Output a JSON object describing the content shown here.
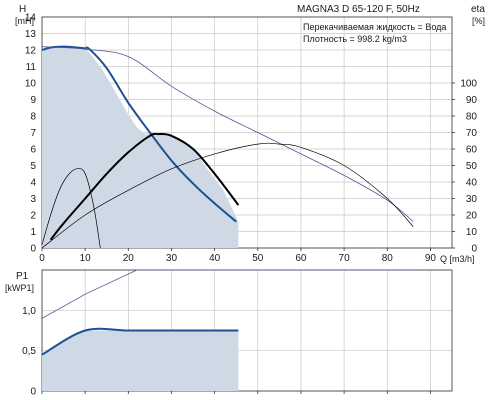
{
  "chart_data": [
    {
      "type": "line",
      "title": "MAGNA3 D 65-120 F, 50Hz",
      "info": [
        "Перекачиваемая жидкость = Вода",
        "Плотность = 998.2 kg/m3"
      ],
      "ylabel": "H",
      "yunit": "[mH]",
      "y2label": "eta",
      "y2unit": "[%]",
      "xlabel": "Q [m3/h]",
      "xlim": [
        0,
        95
      ],
      "ylim": [
        0,
        14
      ],
      "y2lim": [
        0,
        140
      ],
      "x_ticks": [
        "0",
        "10",
        "20",
        "30",
        "40",
        "50",
        "60",
        "70",
        "80",
        "90"
      ],
      "y_ticks": [
        "0",
        "1",
        "2",
        "3",
        "4",
        "5",
        "6",
        "7",
        "8",
        "9",
        "10",
        "11",
        "12",
        "13",
        "14"
      ],
      "y2_ticks": [
        "0",
        "10",
        "20",
        "30",
        "40",
        "50",
        "60",
        "70",
        "80",
        "90",
        "100"
      ],
      "grid": true,
      "colors": {
        "grid": "#c8c8c8",
        "fill": "#cfd9e6",
        "curve": "#1e4f94",
        "eta": "#000000",
        "thin": "#4a5a96"
      },
      "series": [
        {
          "role": "operating-area",
          "axis": "H",
          "x": [
            0,
            0,
            1,
            2,
            4,
            6,
            8,
            10,
            12,
            14,
            16,
            18,
            20,
            22,
            24,
            25,
            30,
            35,
            38,
            40,
            42,
            45.5
          ],
          "y": [
            0,
            12,
            12.1,
            12.15,
            12.2,
            12.2,
            12.15,
            12.1,
            11.5,
            10.8,
            9.9,
            9.0,
            8.1,
            7.3,
            6.9,
            7.0,
            6.8,
            6.0,
            4.9,
            4.2,
            3.5,
            1.6
          ]
        },
        {
          "role": "max-curve",
          "axis": "H",
          "x": [
            0,
            2,
            4,
            6,
            8,
            10,
            11,
            15,
            20,
            25,
            30,
            35,
            40,
            45
          ],
          "y": [
            12,
            12.15,
            12.2,
            12.2,
            12.15,
            12.1,
            12.05,
            10.9,
            8.8,
            7.0,
            5.3,
            3.9,
            2.7,
            1.6
          ]
        },
        {
          "role": "max-speed-thin",
          "axis": "H",
          "x": [
            0,
            10,
            20,
            30,
            40,
            50,
            60,
            70,
            80,
            86
          ],
          "y": [
            12.2,
            12.05,
            11.6,
            9.8,
            8.3,
            7.0,
            5.7,
            4.4,
            2.9,
            1.6
          ]
        },
        {
          "role": "eta-max",
          "axis": "eta",
          "x": [
            2,
            5,
            10,
            15,
            20,
            25,
            27,
            30,
            35,
            40,
            45.5
          ],
          "y": [
            5,
            15,
            30,
            45,
            58,
            68,
            69,
            68,
            60,
            45,
            26
          ]
        },
        {
          "role": "eta-thin",
          "axis": "eta",
          "x": [
            0,
            10,
            20,
            30,
            40,
            50,
            55,
            60,
            70,
            80,
            86
          ],
          "y": [
            0,
            20,
            35,
            48,
            57,
            63,
            63,
            61,
            50,
            30,
            13
          ]
        },
        {
          "role": "eta-min",
          "axis": "eta",
          "x": [
            0,
            2,
            4,
            6,
            8,
            10,
            12,
            13.5
          ],
          "y": [
            2,
            20,
            35,
            44,
            48,
            45,
            25,
            0
          ]
        }
      ]
    },
    {
      "type": "line",
      "ylabel": "P1",
      "yunit": "[kWP1]",
      "xlim": [
        0,
        95
      ],
      "ylim": [
        0,
        1.5
      ],
      "y_ticks": [
        "0",
        "0,5",
        "1,0"
      ],
      "grid": true,
      "series": [
        {
          "role": "operating-area",
          "x": [
            0,
            0,
            5,
            10,
            15,
            20,
            25,
            30,
            35,
            40,
            45.5,
            45.5
          ],
          "y": [
            0,
            0.45,
            0.62,
            0.75,
            0.75,
            0.75,
            0.75,
            0.75,
            0.75,
            0.75,
            0.75,
            0.0
          ]
        },
        {
          "role": "p1-max",
          "x": [
            0,
            10,
            20,
            30,
            40,
            45.5
          ],
          "y": [
            0.45,
            0.75,
            0.75,
            0.75,
            0.75,
            0.75
          ]
        },
        {
          "role": "p1-thin",
          "x": [
            0,
            10,
            22,
            40,
            60,
            80,
            86
          ],
          "y": [
            0.9,
            1.2,
            1.5,
            1.5,
            1.5,
            1.5,
            1.5
          ]
        }
      ]
    }
  ]
}
